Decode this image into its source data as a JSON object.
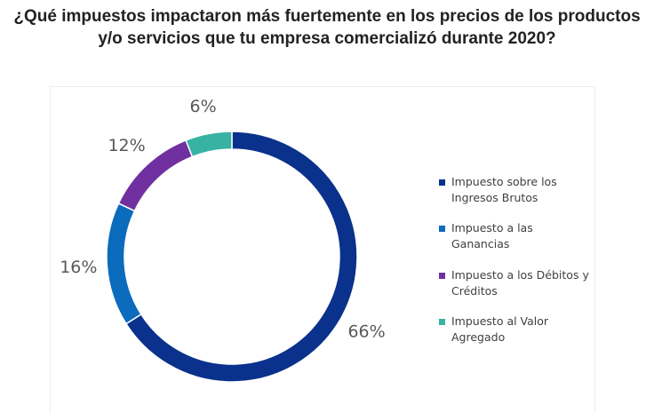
{
  "title_lines": [
    "¿Qué impuestos impactaron más fuertemente en los precios de los productos",
    "y/o servicios que tu empresa comercializó durante 2020?"
  ],
  "chart_data": {
    "type": "pie",
    "variant": "donut",
    "title": "¿Qué impuestos impactaron más fuertemente en los precios de los productos y/o servicios que tu empresa comercializó durante 2020?",
    "categories": [
      "Impuesto sobre los Ingresos Brutos",
      "Impuesto a las Ganancias",
      "Impuesto a los Débitos y Créditos",
      "Impuesto al Valor Agregado"
    ],
    "values": [
      66,
      16,
      12,
      6
    ],
    "labels": [
      "66%",
      "16%",
      "12%",
      "6%"
    ],
    "colors": [
      "#0a318b",
      "#0b6bbd",
      "#7030a0",
      "#38b2a3"
    ],
    "legend_position": "right",
    "start": "12 o'clock",
    "direction": "clockwise"
  }
}
